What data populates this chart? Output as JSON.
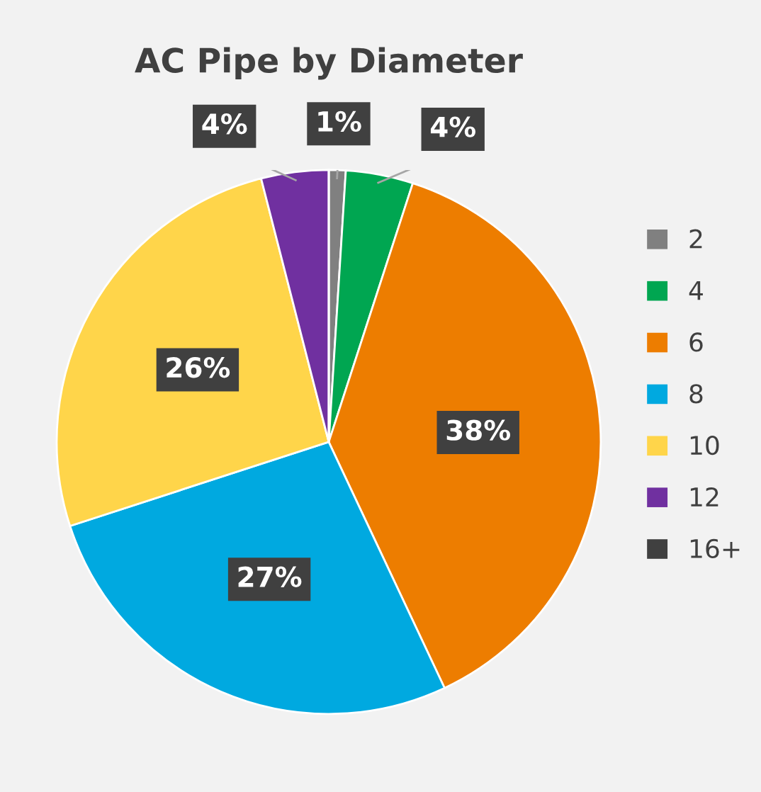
{
  "chart_data": {
    "type": "pie",
    "title": "AC Pipe by Diameter",
    "categories": [
      "2",
      "4",
      "6",
      "8",
      "10",
      "12",
      "16+"
    ],
    "values": [
      1,
      4,
      38,
      27,
      26,
      4,
      0
    ],
    "value_labels": [
      "1%",
      "4%",
      "38%",
      "27%",
      "26%",
      "4%",
      null
    ],
    "colors": [
      "#808080",
      "#00a651",
      "#ed7d00",
      "#00a9e0",
      "#ffd54a",
      "#7030a0",
      "#404040"
    ],
    "legend": "right"
  }
}
